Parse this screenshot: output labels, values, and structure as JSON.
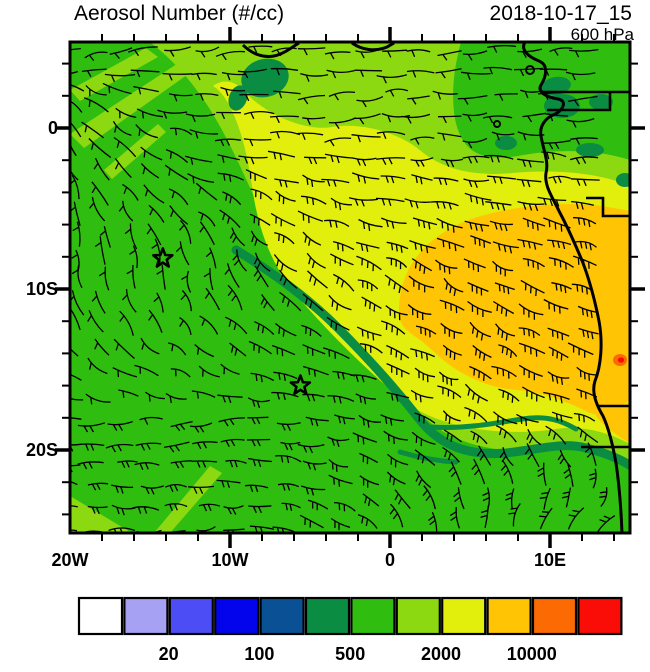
{
  "header": {
    "title": "Aerosol Number (#/cc)",
    "date": "2018-10-17_15",
    "level": "600 hPa"
  },
  "axes": {
    "x": {
      "ticks": [
        {
          "label": "20W",
          "lon": -20
        },
        {
          "label": "10W",
          "lon": -10
        },
        {
          "label": "0",
          "lon": 0
        },
        {
          "label": "10E",
          "lon": 10
        }
      ]
    },
    "y": {
      "ticks": [
        {
          "label": "0",
          "lat": 0
        },
        {
          "label": "10S",
          "lat": -10
        },
        {
          "label": "20S",
          "lat": -20
        }
      ]
    }
  },
  "colorbar": {
    "colors": [
      "#FFFFFF",
      "#A6A1F2",
      "#4D4DF6",
      "#0404EC",
      "#0A5094",
      "#0B8C43",
      "#2FBE10",
      "#8CD912",
      "#E2EE0C",
      "#FFC403",
      "#FC6A03",
      "#F90D06"
    ],
    "labels": [
      {
        "text": "20",
        "after_cell": 2
      },
      {
        "text": "100",
        "after_cell": 4
      },
      {
        "text": "500",
        "after_cell": 6
      },
      {
        "text": "2000",
        "after_cell": 8
      },
      {
        "text": "10000",
        "after_cell": 10
      }
    ]
  },
  "colors": {
    "white": "#FFFFFF",
    "lavender": "#A6A1F2",
    "blue_violet": "#4D4DF6",
    "blue": "#0404EC",
    "steel_blue": "#0A5094",
    "dark_green": "#0B8C43",
    "green": "#2FBE10",
    "yellow_green": "#8CD912",
    "yellow": "#E2EE0C",
    "orange_yellow": "#FFC403",
    "orange": "#FC6A03",
    "red": "#F90D06",
    "ink": "#000000",
    "background": "#FFFFFF"
  },
  "markers": [
    {
      "type": "star",
      "lon": -14.2,
      "lat": -8.1
    },
    {
      "type": "star",
      "lon": -5.6,
      "lat": -16.0
    }
  ],
  "chart_data": {
    "type": "heatmap",
    "title": "Aerosol Number (#/cc)",
    "timestamp": "2018-10-17_15",
    "pressure_level": "600 hPa",
    "units": "#/cc",
    "x_axis": {
      "tick_labels": [
        "20W",
        "10W",
        "0",
        "10E"
      ],
      "lon_range": [
        -20,
        15
      ],
      "minor_tick_deg": 2
    },
    "y_axis": {
      "tick_labels": [
        "0",
        "10S",
        "20S"
      ],
      "lat_range": [
        5.3,
        -25.2
      ],
      "minor_tick_deg": 2
    },
    "colorbar": {
      "boundary_labels": [
        20,
        100,
        500,
        2000,
        10000
      ],
      "n_cells": 12,
      "scale": "log",
      "colors": [
        "#FFFFFF",
        "#A6A1F2",
        "#4D4DF6",
        "#0404EC",
        "#0A5094",
        "#0B8C43",
        "#2FBE10",
        "#8CD912",
        "#E2EE0C",
        "#FFC403",
        "#FC6A03",
        "#F90D06"
      ]
    },
    "fields": [
      {
        "name": "aerosol-plume-high",
        "value_range": "2000-10000",
        "approx_center_lonlat": [
          8,
          -11
        ],
        "color": "#FFC403"
      },
      {
        "name": "peak-spot-near-coast",
        "value_range": ">10000",
        "approx_lonlat": [
          14.3,
          -14.4
        ],
        "color": "#F90D06"
      },
      {
        "name": "yellow-band",
        "value_range": "1000-2000",
        "region": "surrounds plume, NE half of map",
        "color": "#E2EE0C"
      },
      {
        "name": "clean-filament",
        "value_range": "200-500",
        "region": "curved band from ~(-9.5,-8) to coast near 20S",
        "color": "#0B8C43"
      },
      {
        "name": "background-ocean",
        "value_range": "500-1000",
        "region": "SW half of map",
        "color": "#2FBE10"
      }
    ],
    "overlays": [
      {
        "name": "wind-barbs",
        "style": "curly barbs",
        "coverage": "full regular grid"
      },
      {
        "name": "coastline",
        "region": "West/Central Africa, Gabon to Namibia"
      },
      {
        "name": "station-stars",
        "points_lonlat": [
          [
            -14.2,
            -8.1
          ],
          [
            -5.6,
            -16.0
          ]
        ]
      }
    ]
  }
}
